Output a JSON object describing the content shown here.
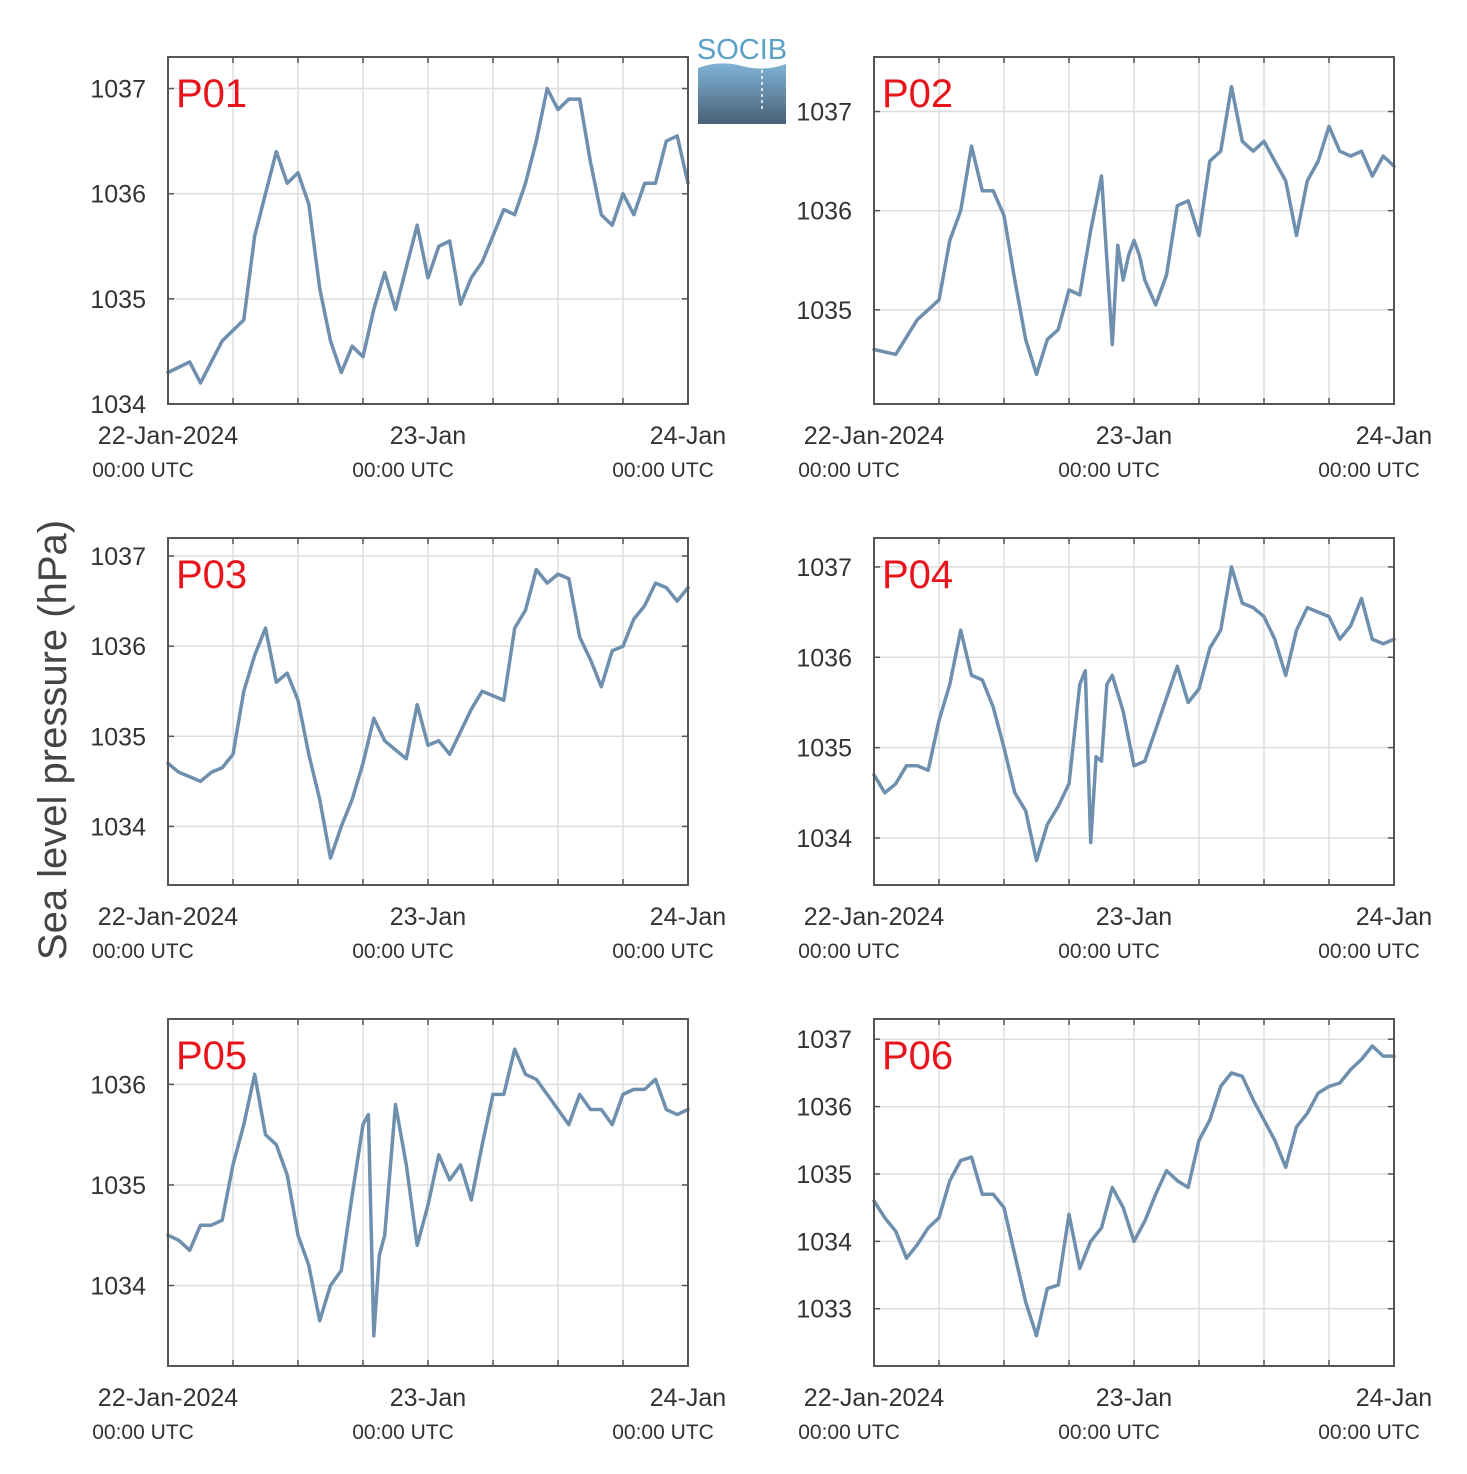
{
  "figure": {
    "ylabel": "Sea level pressure (hPa)",
    "logo_text": "SOCIB",
    "colors": {
      "line": "#6f8fae",
      "panel_label": "#e8141c",
      "grid": "#dddddd",
      "axis": "#555555",
      "logo_text": "#5aa0c8",
      "logo_top": "#7fb3d6",
      "logo_bottom": "#4a6077"
    }
  },
  "chart_data": [
    {
      "type": "line",
      "label": "P01",
      "xlim": [
        "2024-01-22 00:00",
        "2024-01-24 00:00"
      ],
      "ylim": [
        1034.0,
        1037.3
      ],
      "yticks": [
        1034,
        1035,
        1036,
        1037
      ],
      "xticks": [
        {
          "line1": "22-Jan-2024",
          "line2": "00:00 UTC"
        },
        {
          "line1": "23-Jan",
          "line2": "00:00 UTC"
        },
        {
          "line1": "24-Jan",
          "line2": "00:00 UTC"
        }
      ],
      "x_hours": [
        -6,
        -4,
        -3,
        -2,
        -1,
        0,
        1,
        2,
        3,
        4,
        5,
        6,
        7,
        8,
        9,
        10,
        11,
        12,
        13,
        14,
        15,
        16,
        17,
        18,
        19,
        20,
        21,
        22,
        23,
        24,
        25,
        26,
        27,
        28,
        29,
        30,
        31,
        32,
        33,
        34,
        35,
        36,
        37,
        38,
        39,
        40,
        41,
        42
      ],
      "values": [
        1034.3,
        1034.4,
        1034.2,
        1034.4,
        1034.6,
        1034.7,
        1034.8,
        1035.6,
        1036.0,
        1036.4,
        1036.1,
        1036.2,
        1035.9,
        1035.1,
        1034.6,
        1034.3,
        1034.55,
        1034.45,
        1034.9,
        1035.25,
        1034.9,
        1035.3,
        1035.7,
        1035.2,
        1035.5,
        1035.55,
        1034.95,
        1035.2,
        1035.35,
        1035.6,
        1035.85,
        1035.8,
        1036.1,
        1036.5,
        1037.0,
        1036.8,
        1036.9,
        1036.9,
        1036.3,
        1035.8,
        1035.7,
        1036.0,
        1035.8,
        1036.1,
        1036.1,
        1036.5,
        1036.55,
        1036.1
      ]
    },
    {
      "type": "line",
      "label": "P02",
      "xlim": [
        "2024-01-22 00:00",
        "2024-01-24 00:00"
      ],
      "ylim": [
        1034.05,
        1037.55
      ],
      "yticks": [
        1035,
        1036,
        1037
      ],
      "xticks": [
        {
          "line1": "22-Jan-2024",
          "line2": "00:00 UTC"
        },
        {
          "line1": "23-Jan",
          "line2": "00:00 UTC"
        },
        {
          "line1": "24-Jan",
          "line2": "00:00 UTC"
        }
      ],
      "x_hours": [
        -6,
        -4,
        -2,
        -1,
        0,
        1,
        2,
        3,
        4,
        5,
        6,
        7,
        8,
        9,
        10,
        11,
        12,
        13,
        14,
        15,
        16,
        16.5,
        17,
        17.5,
        18,
        18.5,
        19,
        20,
        21,
        22,
        23,
        24,
        25,
        26,
        27,
        28,
        29,
        30,
        31,
        32,
        33,
        34,
        35,
        36,
        37,
        38,
        39,
        40,
        41,
        42
      ],
      "values": [
        1034.6,
        1034.55,
        1034.9,
        1035.0,
        1035.1,
        1035.7,
        1036.0,
        1036.65,
        1036.2,
        1036.2,
        1035.95,
        1035.3,
        1034.7,
        1034.35,
        1034.7,
        1034.8,
        1035.2,
        1035.15,
        1035.8,
        1036.35,
        1034.65,
        1035.65,
        1035.3,
        1035.55,
        1035.7,
        1035.55,
        1035.3,
        1035.05,
        1035.35,
        1036.05,
        1036.1,
        1035.75,
        1036.5,
        1036.6,
        1037.25,
        1036.7,
        1036.6,
        1036.7,
        1036.5,
        1036.3,
        1035.75,
        1036.3,
        1036.5,
        1036.85,
        1036.6,
        1036.55,
        1036.6,
        1036.35,
        1036.55,
        1036.45
      ]
    },
    {
      "type": "line",
      "label": "P03",
      "xlim": [
        "2024-01-22 00:00",
        "2024-01-24 00:00"
      ],
      "ylim": [
        1033.35,
        1037.2
      ],
      "yticks": [
        1034,
        1035,
        1036,
        1037
      ],
      "xticks": [
        {
          "line1": "22-Jan-2024",
          "line2": "00:00 UTC"
        },
        {
          "line1": "23-Jan",
          "line2": "00:00 UTC"
        },
        {
          "line1": "24-Jan",
          "line2": "00:00 UTC"
        }
      ],
      "x_hours": [
        -6,
        -5,
        -4,
        -3,
        -2,
        -1,
        0,
        1,
        2,
        3,
        4,
        5,
        6,
        7,
        8,
        9,
        10,
        11,
        12,
        13,
        14,
        15,
        16,
        17,
        18,
        19,
        20,
        21,
        22,
        23,
        24,
        25,
        26,
        27,
        28,
        29,
        30,
        31,
        32,
        33,
        34,
        35,
        36,
        37,
        38,
        39,
        40,
        41,
        42
      ],
      "values": [
        1034.7,
        1034.6,
        1034.55,
        1034.5,
        1034.6,
        1034.65,
        1034.8,
        1035.5,
        1035.9,
        1036.2,
        1035.6,
        1035.7,
        1035.4,
        1034.8,
        1034.3,
        1033.65,
        1034.0,
        1034.3,
        1034.7,
        1035.2,
        1034.95,
        1034.85,
        1034.75,
        1035.35,
        1034.9,
        1034.95,
        1034.8,
        1035.05,
        1035.3,
        1035.5,
        1035.45,
        1035.4,
        1036.2,
        1036.4,
        1036.85,
        1036.7,
        1036.8,
        1036.75,
        1036.1,
        1035.85,
        1035.55,
        1035.95,
        1036.0,
        1036.3,
        1036.45,
        1036.7,
        1036.65,
        1036.5,
        1036.65
      ]
    },
    {
      "type": "line",
      "label": "P04",
      "xlim": [
        "2024-01-22 00:00",
        "2024-01-24 00:00"
      ],
      "ylim": [
        1033.48,
        1037.32
      ],
      "yticks": [
        1034,
        1035,
        1036,
        1037
      ],
      "xticks": [
        {
          "line1": "22-Jan-2024",
          "line2": "00:00 UTC"
        },
        {
          "line1": "23-Jan",
          "line2": "00:00 UTC"
        },
        {
          "line1": "24-Jan",
          "line2": "00:00 UTC"
        }
      ],
      "x_hours": [
        -6,
        -5,
        -4,
        -3,
        -2,
        -1,
        0,
        1,
        2,
        3,
        4,
        5,
        6,
        7,
        8,
        9,
        10,
        11,
        12,
        13,
        13.5,
        14,
        14.5,
        15,
        15.5,
        16,
        17,
        18,
        19,
        20,
        21,
        22,
        23,
        24,
        25,
        26,
        27,
        28,
        29,
        30,
        31,
        32,
        33,
        34,
        35,
        36,
        37,
        38,
        39,
        40,
        41,
        42
      ],
      "values": [
        1034.7,
        1034.5,
        1034.6,
        1034.8,
        1034.8,
        1034.75,
        1035.3,
        1035.7,
        1036.3,
        1035.8,
        1035.75,
        1035.45,
        1035.0,
        1034.5,
        1034.3,
        1033.75,
        1034.15,
        1034.35,
        1034.6,
        1035.7,
        1035.85,
        1033.95,
        1034.9,
        1034.85,
        1035.7,
        1035.8,
        1035.4,
        1034.8,
        1034.85,
        1035.2,
        1035.55,
        1035.9,
        1035.5,
        1035.65,
        1036.1,
        1036.3,
        1037.0,
        1036.6,
        1036.55,
        1036.45,
        1036.2,
        1035.8,
        1036.3,
        1036.55,
        1036.5,
        1036.45,
        1036.2,
        1036.35,
        1036.65,
        1036.2,
        1036.15,
        1036.2
      ]
    },
    {
      "type": "line",
      "label": "P05",
      "xlim": [
        "2024-01-22 00:00",
        "2024-01-24 00:00"
      ],
      "ylim": [
        1033.2,
        1036.65
      ],
      "yticks": [
        1034,
        1035,
        1036
      ],
      "xticks": [
        {
          "line1": "22-Jan-2024",
          "line2": "00:00 UTC"
        },
        {
          "line1": "23-Jan",
          "line2": "00:00 UTC"
        },
        {
          "line1": "24-Jan",
          "line2": "00:00 UTC"
        }
      ],
      "x_hours": [
        -6,
        -5,
        -4,
        -3,
        -2,
        -1,
        0,
        1,
        2,
        3,
        4,
        5,
        6,
        7,
        8,
        9,
        10,
        11,
        12,
        12.5,
        13,
        13.5,
        14,
        15,
        16,
        17,
        18,
        19,
        20,
        21,
        22,
        23,
        24,
        25,
        26,
        27,
        28,
        29,
        30,
        31,
        32,
        33,
        34,
        35,
        36,
        37,
        38,
        39,
        40,
        41,
        42
      ],
      "values": [
        1034.5,
        1034.45,
        1034.35,
        1034.6,
        1034.6,
        1034.65,
        1035.2,
        1035.6,
        1036.1,
        1035.5,
        1035.4,
        1035.1,
        1034.5,
        1034.2,
        1033.65,
        1034.0,
        1034.15,
        1034.9,
        1035.6,
        1035.7,
        1033.5,
        1034.3,
        1034.5,
        1035.8,
        1035.2,
        1034.4,
        1034.8,
        1035.3,
        1035.05,
        1035.2,
        1034.85,
        1035.4,
        1035.9,
        1035.9,
        1036.35,
        1036.1,
        1036.05,
        1035.9,
        1035.75,
        1035.6,
        1035.9,
        1035.75,
        1035.75,
        1035.6,
        1035.9,
        1035.95,
        1035.95,
        1036.05,
        1035.75,
        1035.7,
        1035.75
      ]
    },
    {
      "type": "line",
      "label": "P06",
      "xlim": [
        "2024-01-22 00:00",
        "2024-01-24 00:00"
      ],
      "ylim": [
        1032.15,
        1037.3
      ],
      "yticks": [
        1033,
        1034,
        1035,
        1036,
        1037
      ],
      "xticks": [
        {
          "line1": "22-Jan-2024",
          "line2": "00:00 UTC"
        },
        {
          "line1": "23-Jan",
          "line2": "00:00 UTC"
        },
        {
          "line1": "24-Jan",
          "line2": "00:00 UTC"
        }
      ],
      "x_hours": [
        -6,
        -5,
        -4,
        -3,
        -2,
        -1,
        0,
        1,
        2,
        3,
        4,
        5,
        6,
        7,
        8,
        9,
        10,
        11,
        12,
        13,
        14,
        15,
        16,
        17,
        18,
        19,
        20,
        21,
        22,
        23,
        24,
        25,
        26,
        27,
        28,
        29,
        30,
        31,
        32,
        33,
        34,
        35,
        36,
        37,
        38,
        39,
        40,
        41,
        42
      ],
      "values": [
        1034.6,
        1034.35,
        1034.15,
        1033.75,
        1033.95,
        1034.2,
        1034.35,
        1034.9,
        1035.2,
        1035.25,
        1034.7,
        1034.7,
        1034.5,
        1033.8,
        1033.1,
        1032.6,
        1033.3,
        1033.35,
        1034.4,
        1033.6,
        1034.0,
        1034.2,
        1034.8,
        1034.5,
        1034.0,
        1034.3,
        1034.7,
        1035.05,
        1034.9,
        1034.8,
        1035.5,
        1035.8,
        1036.3,
        1036.5,
        1036.45,
        1036.1,
        1035.8,
        1035.5,
        1035.1,
        1035.7,
        1035.9,
        1036.2,
        1036.3,
        1036.35,
        1036.55,
        1036.7,
        1036.9,
        1036.75,
        1036.75
      ]
    }
  ]
}
